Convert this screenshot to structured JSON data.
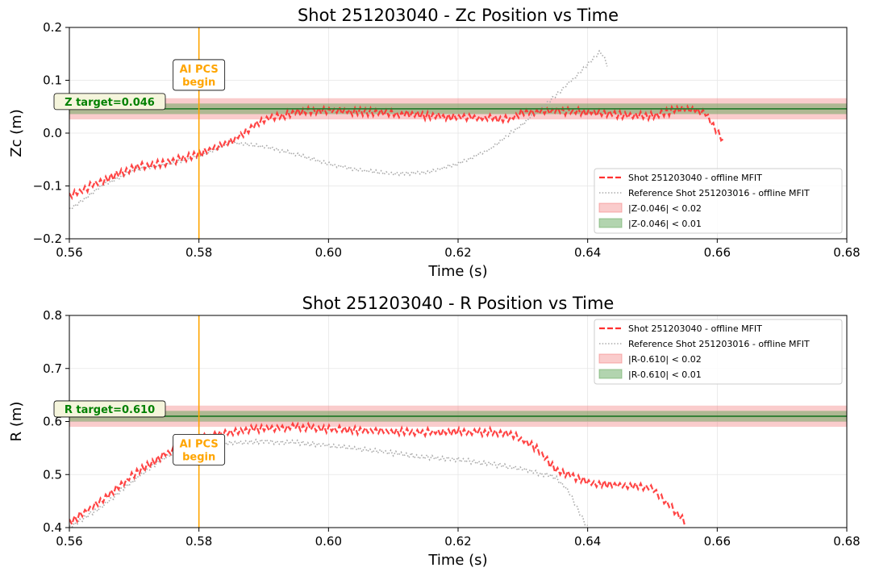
{
  "colors": {
    "shot": "#FF3030",
    "reference": "#AAAAAA",
    "band_wide": "#F26D6D",
    "band_narrow": "#55A04E",
    "target_line": "#2E7D32",
    "ai_line": "#FFA500",
    "target_text": "#008000"
  },
  "chart_data": [
    {
      "type": "line",
      "title": "Shot 251203040 - Zc Position vs Time",
      "xlabel": "Time (s)",
      "ylabel": "Zc (m)",
      "xlim": [
        0.56,
        0.68
      ],
      "ylim": [
        -0.2,
        0.2
      ],
      "xticks": [
        0.56,
        0.58,
        0.6,
        0.62,
        0.64,
        0.66,
        0.68
      ],
      "xtick_labels": [
        "0.56",
        "0.58",
        "0.60",
        "0.62",
        "0.64",
        "0.66",
        "0.68"
      ],
      "yticks": [
        -0.2,
        -0.1,
        0.0,
        0.1,
        0.2
      ],
      "ytick_labels": [
        "−0.2",
        "−0.1",
        "0.0",
        "0.1",
        "0.2"
      ],
      "grid": true,
      "target": 0.046,
      "target_label": "Z target=0.046",
      "band_wide": 0.02,
      "band_narrow": 0.01,
      "ai_time": 0.58,
      "ai_label": [
        "AI PCS",
        "begin"
      ],
      "ai_label_at": [
        0.58,
        0.11
      ],
      "legend_position": "lower-right",
      "legend": [
        {
          "label": "Shot 251203040 - offline MFIT",
          "kind": "dashed"
        },
        {
          "label": "Reference Shot 251203016 - offline MFIT",
          "kind": "dotted"
        },
        {
          "label": "|Z-0.046| < 0.02",
          "kind": "band_wide"
        },
        {
          "label": "|Z-0.046| < 0.01",
          "kind": "band_narrow"
        }
      ],
      "series": [
        {
          "name": "Shot 251203040 - offline MFIT",
          "style": "dashed",
          "x": [
            0.56,
            0.565,
            0.57,
            0.575,
            0.58,
            0.585,
            0.59,
            0.595,
            0.6,
            0.605,
            0.61,
            0.615,
            0.62,
            0.625,
            0.628,
            0.63,
            0.635,
            0.64,
            0.645,
            0.65,
            0.655,
            0.658,
            0.66,
            0.661
          ],
          "y": [
            -0.12,
            -0.09,
            -0.065,
            -0.055,
            -0.04,
            -0.015,
            0.025,
            0.04,
            0.043,
            0.04,
            0.037,
            0.033,
            0.03,
            0.028,
            0.027,
            0.04,
            0.042,
            0.04,
            0.035,
            0.032,
            0.048,
            0.04,
            0.0,
            -0.015
          ],
          "jitter": 0.008
        },
        {
          "name": "Reference Shot 251203016 - offline MFIT",
          "style": "dotted",
          "x": [
            0.56,
            0.565,
            0.57,
            0.575,
            0.58,
            0.585,
            0.59,
            0.595,
            0.6,
            0.605,
            0.61,
            0.615,
            0.62,
            0.625,
            0.63,
            0.635,
            0.638,
            0.64,
            0.642,
            0.643
          ],
          "y": [
            -0.145,
            -0.1,
            -0.07,
            -0.06,
            -0.045,
            -0.018,
            -0.025,
            -0.04,
            -0.058,
            -0.07,
            -0.077,
            -0.075,
            -0.058,
            -0.03,
            0.018,
            0.07,
            0.105,
            0.13,
            0.155,
            0.13
          ],
          "jitter": 0.004
        }
      ]
    },
    {
      "type": "line",
      "title": "Shot 251203040 - R Position vs Time",
      "xlabel": "Time (s)",
      "ylabel": "R (m)",
      "xlim": [
        0.56,
        0.68
      ],
      "ylim": [
        0.4,
        0.8
      ],
      "xticks": [
        0.56,
        0.58,
        0.6,
        0.62,
        0.64,
        0.66,
        0.68
      ],
      "xtick_labels": [
        "0.56",
        "0.58",
        "0.60",
        "0.62",
        "0.64",
        "0.66",
        "0.68"
      ],
      "yticks": [
        0.4,
        0.5,
        0.6,
        0.7,
        0.8
      ],
      "ytick_labels": [
        "0.4",
        "0.5",
        "0.6",
        "0.7",
        "0.8"
      ],
      "grid": true,
      "target": 0.61,
      "target_label": "R target=0.610",
      "band_wide": 0.02,
      "band_narrow": 0.01,
      "ai_time": 0.58,
      "ai_label": [
        "AI PCS",
        "begin"
      ],
      "ai_label_at": [
        0.58,
        0.547
      ],
      "legend_position": "upper-right",
      "legend": [
        {
          "label": "Shot 251203040 - offline MFIT",
          "kind": "dashed"
        },
        {
          "label": "Reference Shot 251203016 - offline MFIT",
          "kind": "dotted"
        },
        {
          "label": "|R-0.610| < 0.02",
          "kind": "band_wide"
        },
        {
          "label": "|R-0.610| < 0.01",
          "kind": "band_narrow"
        }
      ],
      "series": [
        {
          "name": "Shot 251203040 - offline MFIT",
          "style": "dashed",
          "x": [
            0.56,
            0.565,
            0.57,
            0.575,
            0.58,
            0.585,
            0.59,
            0.595,
            0.6,
            0.605,
            0.61,
            0.615,
            0.62,
            0.625,
            0.628,
            0.632,
            0.635,
            0.64,
            0.645,
            0.65,
            0.652,
            0.655
          ],
          "y": [
            0.41,
            0.45,
            0.5,
            0.54,
            0.57,
            0.58,
            0.588,
            0.59,
            0.586,
            0.583,
            0.581,
            0.58,
            0.58,
            0.58,
            0.578,
            0.55,
            0.51,
            0.485,
            0.48,
            0.475,
            0.45,
            0.41
          ],
          "jitter": 0.008
        },
        {
          "name": "Reference Shot 251203016 - offline MFIT",
          "style": "dotted",
          "x": [
            0.56,
            0.565,
            0.57,
            0.575,
            0.58,
            0.585,
            0.59,
            0.595,
            0.6,
            0.605,
            0.61,
            0.615,
            0.62,
            0.625,
            0.63,
            0.635,
            0.637,
            0.64
          ],
          "y": [
            0.4,
            0.44,
            0.49,
            0.535,
            0.555,
            0.56,
            0.562,
            0.56,
            0.555,
            0.548,
            0.54,
            0.533,
            0.528,
            0.52,
            0.51,
            0.495,
            0.47,
            0.4
          ],
          "jitter": 0.005
        }
      ]
    }
  ]
}
